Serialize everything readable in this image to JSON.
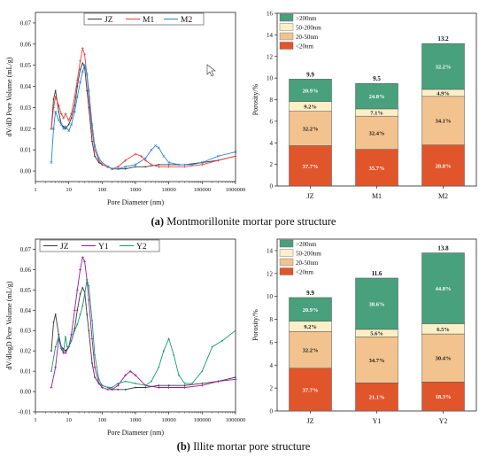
{
  "captions": {
    "a_letter": "(a)",
    "a_text": " Montmorillonite mortar pore structure",
    "b_letter": "(b)",
    "b_text": " Illite mortar pore structure"
  },
  "chart_data": [
    {
      "id": "a-lines",
      "type": "line",
      "ylabel": "dV/dD Pore Volume  (mL/g)",
      "xlabel": "Pore Diameter   (nm)",
      "xscale": "log",
      "xlim": [
        1,
        1000000
      ],
      "ylim": [
        -0.005,
        0.075
      ],
      "yticks": [
        0.0,
        0.01,
        0.02,
        0.03,
        0.04,
        0.05,
        0.06,
        0.07
      ],
      "ytick_labels": [
        "0.00",
        "0.01",
        "0.02",
        "0.03",
        "0.04",
        "0.05",
        "0.06",
        "0.07"
      ],
      "xticks": [
        1,
        10,
        100,
        1000,
        10000,
        100000,
        1000000
      ],
      "xtick_labels": [
        "1",
        "10",
        "100",
        "1000",
        "10000",
        "100000",
        "1000000"
      ],
      "legend_position": "top-center",
      "series": [
        {
          "name": "JZ",
          "color": "#3a3a3a",
          "marker": "dot",
          "points": [
            [
              3,
              0.02
            ],
            [
              3.5,
              0.034
            ],
            [
              4,
              0.038
            ],
            [
              5,
              0.028
            ],
            [
              6,
              0.022
            ],
            [
              7,
              0.021
            ],
            [
              8,
              0.02
            ],
            [
              10,
              0.022
            ],
            [
              12,
              0.025
            ],
            [
              15,
              0.031
            ],
            [
              18,
              0.04
            ],
            [
              22,
              0.048
            ],
            [
              26,
              0.051
            ],
            [
              30,
              0.049
            ],
            [
              35,
              0.038
            ],
            [
              40,
              0.03
            ],
            [
              50,
              0.014
            ],
            [
              60,
              0.007
            ],
            [
              80,
              0.004
            ],
            [
              100,
              0.003
            ],
            [
              150,
              0.002
            ],
            [
              200,
              0.001
            ],
            [
              300,
              0.001
            ],
            [
              500,
              0.001
            ],
            [
              1000,
              0.002
            ],
            [
              2000,
              0.002
            ],
            [
              5000,
              0.003
            ],
            [
              10000,
              0.003
            ],
            [
              30000,
              0.003
            ],
            [
              100000,
              0.004
            ],
            [
              300000,
              0.005
            ],
            [
              1000000,
              0.007
            ]
          ]
        },
        {
          "name": "M1",
          "color": "#e8413a",
          "marker": "cross",
          "points": [
            [
              3,
              0.02
            ],
            [
              3.5,
              0.03
            ],
            [
              4,
              0.035
            ],
            [
              5,
              0.031
            ],
            [
              6,
              0.027
            ],
            [
              7,
              0.025
            ],
            [
              8,
              0.027
            ],
            [
              10,
              0.024
            ],
            [
              12,
              0.027
            ],
            [
              15,
              0.035
            ],
            [
              18,
              0.043
            ],
            [
              22,
              0.052
            ],
            [
              26,
              0.058
            ],
            [
              30,
              0.055
            ],
            [
              35,
              0.045
            ],
            [
              40,
              0.035
            ],
            [
              50,
              0.019
            ],
            [
              60,
              0.01
            ],
            [
              80,
              0.005
            ],
            [
              100,
              0.003
            ],
            [
              150,
              0.002
            ],
            [
              200,
              0.001
            ],
            [
              300,
              0.002
            ],
            [
              500,
              0.005
            ],
            [
              1000,
              0.008
            ],
            [
              1500,
              0.007
            ],
            [
              2000,
              0.005
            ],
            [
              3000,
              0.003
            ],
            [
              5000,
              0.002
            ],
            [
              10000,
              0.002
            ],
            [
              30000,
              0.002
            ],
            [
              100000,
              0.003
            ],
            [
              300000,
              0.005
            ],
            [
              1000000,
              0.007
            ]
          ]
        },
        {
          "name": "M2",
          "color": "#2a83d8",
          "marker": "x",
          "points": [
            [
              3,
              0.004
            ],
            [
              3.5,
              0.02
            ],
            [
              4,
              0.028
            ],
            [
              5,
              0.024
            ],
            [
              6,
              0.022
            ],
            [
              7,
              0.02
            ],
            [
              8,
              0.021
            ],
            [
              10,
              0.019
            ],
            [
              12,
              0.022
            ],
            [
              15,
              0.028
            ],
            [
              18,
              0.035
            ],
            [
              22,
              0.042
            ],
            [
              26,
              0.047
            ],
            [
              30,
              0.05
            ],
            [
              35,
              0.046
            ],
            [
              40,
              0.038
            ],
            [
              50,
              0.022
            ],
            [
              60,
              0.012
            ],
            [
              80,
              0.006
            ],
            [
              100,
              0.004
            ],
            [
              150,
              0.002
            ],
            [
              200,
              0.001
            ],
            [
              300,
              0.001
            ],
            [
              500,
              0.002
            ],
            [
              1000,
              0.003
            ],
            [
              2000,
              0.006
            ],
            [
              3000,
              0.01
            ],
            [
              4000,
              0.012
            ],
            [
              5000,
              0.011
            ],
            [
              7000,
              0.007
            ],
            [
              10000,
              0.004
            ],
            [
              20000,
              0.003
            ],
            [
              50000,
              0.003
            ],
            [
              100000,
              0.004
            ],
            [
              300000,
              0.007
            ],
            [
              1000000,
              0.009
            ]
          ]
        }
      ]
    },
    {
      "id": "a-bars",
      "type": "bar",
      "stacked": true,
      "ylabel": "Porosity/%",
      "ylim": [
        0,
        16
      ],
      "yticks": [
        0,
        2,
        4,
        6,
        8,
        10,
        12,
        14,
        16
      ],
      "categories": [
        "JZ",
        "M1",
        "M2"
      ],
      "totals": [
        "9.9",
        "9.5",
        "13.2"
      ],
      "legend_position": "top-left",
      "series": [
        {
          "name": "<20nm",
          "color": "#e1552b",
          "shares": [
            37.7,
            35.7,
            28.8
          ],
          "labels": [
            "37.7%",
            "35.7%",
            "28.8%"
          ]
        },
        {
          "name": "20-50nm",
          "color": "#f2c38f",
          "shares": [
            32.2,
            32.4,
            34.1
          ],
          "labels": [
            "32.2%",
            "32.4%",
            "34.1%"
          ]
        },
        {
          "name": "50-200nm",
          "color": "#fcefc7",
          "shares": [
            9.2,
            7.1,
            4.9
          ],
          "labels": [
            "9.2%",
            "7.1%",
            "4.9%"
          ]
        },
        {
          "name": ">200nm",
          "color": "#49a07c",
          "shares": [
            20.9,
            24.8,
            32.2
          ],
          "labels": [
            "20.9%",
            "24.8%",
            "32.2%"
          ]
        }
      ]
    },
    {
      "id": "b-lines",
      "type": "line",
      "ylabel": "dV/dlogD Pore Volume  (mL/g)",
      "xlabel": "Pore Diameter   (nm)",
      "xscale": "log",
      "xlim": [
        1,
        1000000
      ],
      "ylim": [
        -0.01,
        0.075
      ],
      "yticks": [
        -0.01,
        0.0,
        0.01,
        0.02,
        0.03,
        0.04,
        0.05,
        0.06,
        0.07
      ],
      "ytick_labels": [
        "-0.01",
        "0.00",
        "0.01",
        "0.02",
        "0.03",
        "0.04",
        "0.05",
        "0.06",
        "0.07"
      ],
      "xticks": [
        1,
        10,
        100,
        1000,
        10000,
        100000,
        1000000
      ],
      "xtick_labels": [
        "1",
        "10",
        "100",
        "1000",
        "10000",
        "100000",
        "1000000"
      ],
      "legend_position": "top-left",
      "series": [
        {
          "name": "JZ",
          "color": "#3a3a3a",
          "marker": "dot",
          "points": [
            [
              3,
              0.02
            ],
            [
              3.5,
              0.034
            ],
            [
              4,
              0.038
            ],
            [
              5,
              0.028
            ],
            [
              6,
              0.022
            ],
            [
              7,
              0.021
            ],
            [
              8,
              0.02
            ],
            [
              10,
              0.022
            ],
            [
              12,
              0.025
            ],
            [
              15,
              0.031
            ],
            [
              18,
              0.04
            ],
            [
              22,
              0.048
            ],
            [
              26,
              0.051
            ],
            [
              30,
              0.049
            ],
            [
              35,
              0.038
            ],
            [
              40,
              0.03
            ],
            [
              50,
              0.014
            ],
            [
              60,
              0.007
            ],
            [
              80,
              0.004
            ],
            [
              100,
              0.003
            ],
            [
              150,
              0.002
            ],
            [
              200,
              0.001
            ],
            [
              300,
              0.001
            ],
            [
              500,
              0.001
            ],
            [
              1000,
              0.002
            ],
            [
              2000,
              0.002
            ],
            [
              5000,
              0.003
            ],
            [
              10000,
              0.003
            ],
            [
              30000,
              0.003
            ],
            [
              100000,
              0.004
            ],
            [
              300000,
              0.005
            ],
            [
              1000000,
              0.007
            ]
          ]
        },
        {
          "name": "Y1",
          "color": "#a0169f",
          "marker": "cross",
          "points": [
            [
              3,
              0.002
            ],
            [
              4,
              0.012
            ],
            [
              5,
              0.026
            ],
            [
              6,
              0.021
            ],
            [
              7,
              0.019
            ],
            [
              8,
              0.019
            ],
            [
              10,
              0.022
            ],
            [
              12,
              0.028
            ],
            [
              15,
              0.04
            ],
            [
              18,
              0.05
            ],
            [
              22,
              0.06
            ],
            [
              26,
              0.066
            ],
            [
              30,
              0.064
            ],
            [
              35,
              0.055
            ],
            [
              40,
              0.045
            ],
            [
              50,
              0.026
            ],
            [
              60,
              0.012
            ],
            [
              80,
              0.004
            ],
            [
              100,
              0.002
            ],
            [
              150,
              0.001
            ],
            [
              200,
              0.001
            ],
            [
              300,
              0.003
            ],
            [
              500,
              0.008
            ],
            [
              700,
              0.01
            ],
            [
              1000,
              0.008
            ],
            [
              2000,
              0.003
            ],
            [
              5000,
              0.002
            ],
            [
              10000,
              0.002
            ],
            [
              30000,
              0.002
            ],
            [
              100000,
              0.003
            ],
            [
              300000,
              0.005
            ],
            [
              1000000,
              0.006
            ]
          ]
        },
        {
          "name": "Y2",
          "color": "#149a74",
          "marker": "dot",
          "points": [
            [
              3,
              0.01
            ],
            [
              4,
              0.022
            ],
            [
              5,
              0.027
            ],
            [
              6,
              0.022
            ],
            [
              7,
              0.02
            ],
            [
              8,
              0.027
            ],
            [
              9,
              0.022
            ],
            [
              10,
              0.022
            ],
            [
              12,
              0.025
            ],
            [
              15,
              0.03
            ],
            [
              18,
              0.033
            ],
            [
              22,
              0.038
            ],
            [
              26,
              0.042
            ],
            [
              30,
              0.048
            ],
            [
              35,
              0.055
            ],
            [
              40,
              0.052
            ],
            [
              50,
              0.035
            ],
            [
              60,
              0.018
            ],
            [
              80,
              0.006
            ],
            [
              100,
              0.003
            ],
            [
              150,
              0.002
            ],
            [
              200,
              0.002
            ],
            [
              300,
              0.004
            ],
            [
              500,
              0.005
            ],
            [
              1000,
              0.004
            ],
            [
              2000,
              0.003
            ],
            [
              3000,
              0.005
            ],
            [
              5000,
              0.012
            ],
            [
              7000,
              0.02
            ],
            [
              10000,
              0.026
            ],
            [
              14000,
              0.018
            ],
            [
              20000,
              0.008
            ],
            [
              30000,
              0.004
            ],
            [
              50000,
              0.004
            ],
            [
              100000,
              0.01
            ],
            [
              200000,
              0.022
            ],
            [
              400000,
              0.025
            ],
            [
              1000000,
              0.03
            ]
          ]
        }
      ]
    },
    {
      "id": "b-bars",
      "type": "bar",
      "stacked": true,
      "ylabel": "Porosity/%",
      "ylim": [
        0,
        15
      ],
      "yticks": [
        0,
        2,
        4,
        6,
        8,
        10,
        12,
        14
      ],
      "categories": [
        "JZ",
        "Y1",
        "Y2"
      ],
      "totals": [
        "9.9",
        "11.6",
        "13.8"
      ],
      "legend_position": "top-left",
      "series": [
        {
          "name": "<20nm",
          "color": "#e1552b",
          "shares": [
            37.7,
            21.1,
            18.3
          ],
          "labels": [
            "37.7%",
            "21.1%",
            "18.3%"
          ]
        },
        {
          "name": "20-50nm",
          "color": "#f2c38f",
          "shares": [
            32.2,
            34.7,
            30.4
          ],
          "labels": [
            "32.2%",
            "34.7%",
            "30.4%"
          ]
        },
        {
          "name": "50-200nm",
          "color": "#fcefc7",
          "shares": [
            9.2,
            5.6,
            6.5
          ],
          "labels": [
            "9.2%",
            "5.6%",
            "6.5%"
          ]
        },
        {
          "name": ">200nm",
          "color": "#49a07c",
          "shares": [
            20.9,
            38.6,
            44.8
          ],
          "labels": [
            "20.9%",
            "38.6%",
            "44.8%"
          ]
        }
      ]
    }
  ]
}
